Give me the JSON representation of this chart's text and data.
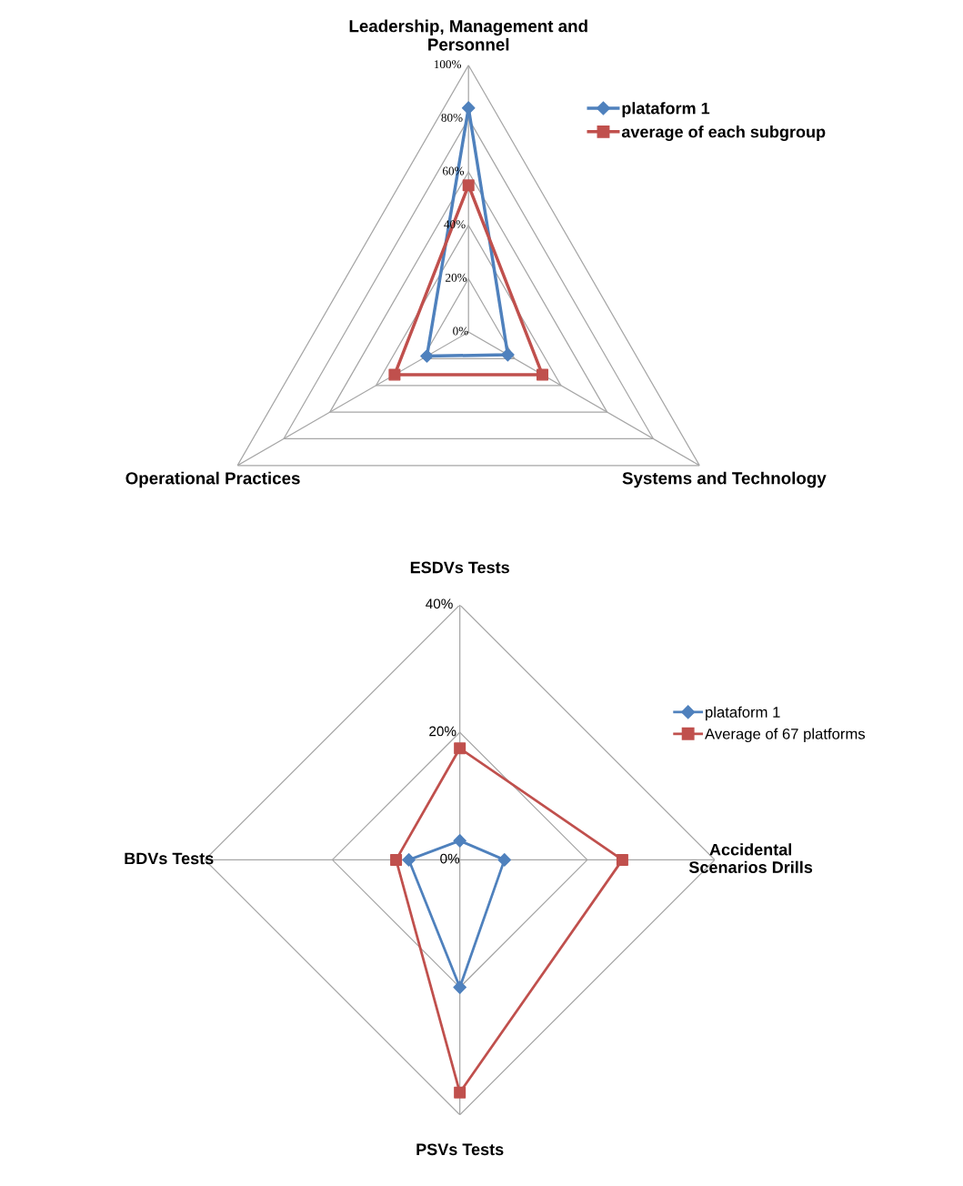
{
  "chart_data": [
    {
      "type": "radar",
      "categories": [
        "Leadership, Management and\nPersonnel",
        "Systems and Technology",
        "Operational Practices"
      ],
      "ylim": [
        0,
        100
      ],
      "yticks": [
        {
          "value": 0,
          "label": "0%"
        },
        {
          "value": 20,
          "label": "20%"
        },
        {
          "value": 40,
          "label": "40%"
        },
        {
          "value": 60,
          "label": "60%"
        },
        {
          "value": 80,
          "label": "80%"
        },
        {
          "value": 100,
          "label": "100%"
        }
      ],
      "legend": "top right",
      "series": [
        {
          "name": "plataform 1",
          "color": "#4f81bd",
          "marker": "diamond",
          "values": [
            84,
            17,
            18
          ]
        },
        {
          "name": "average of each subgroup",
          "color": "#c0504d",
          "marker": "square",
          "values": [
            55,
            32,
            32
          ]
        }
      ]
    },
    {
      "type": "radar",
      "categories": [
        "ESDVs Tests",
        "Accidental\nScenarios Drills",
        "PSVs Tests",
        "BDVs Tests"
      ],
      "ylim": [
        0,
        40
      ],
      "yticks": [
        {
          "value": 0,
          "label": "0%"
        },
        {
          "value": 20,
          "label": "20%"
        },
        {
          "value": 40,
          "label": "40%"
        }
      ],
      "legend": "right",
      "series": [
        {
          "name": "plataform 1",
          "color": "#4f81bd",
          "marker": "diamond",
          "values": [
            3,
            7,
            20,
            8
          ]
        },
        {
          "name": "Average of 67 platforms",
          "color": "#c0504d",
          "marker": "square",
          "values": [
            17.5,
            25.5,
            36.5,
            10
          ]
        }
      ]
    }
  ]
}
